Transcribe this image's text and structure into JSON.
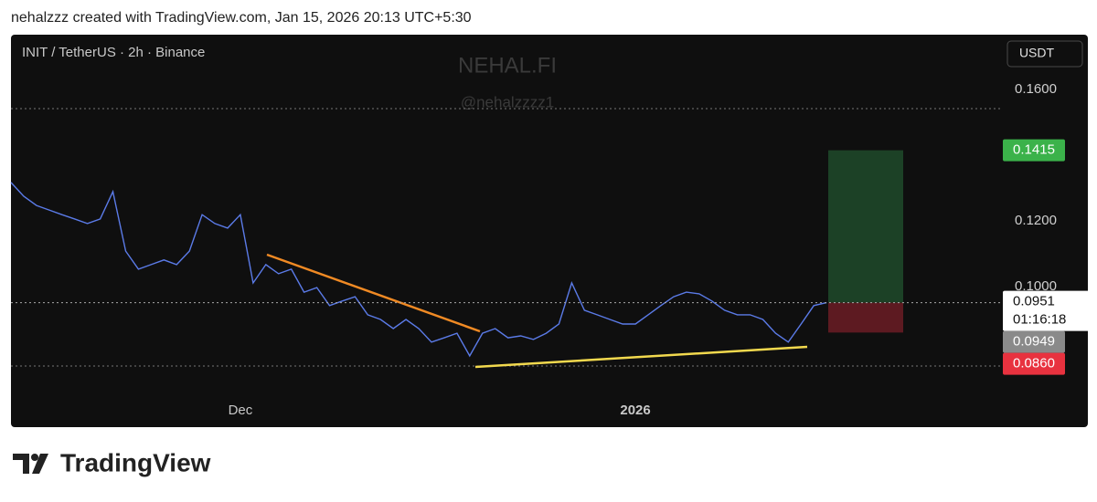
{
  "header": {
    "text": "nehalzzz created with TradingView.com, Jan 15, 2026 20:13 UTC+5:30"
  },
  "watermark": {
    "title": "NEHAL.FI",
    "handle": "@nehalzzzz1"
  },
  "currency": "USDT",
  "footer": {
    "brand": "TradingView"
  },
  "chart_data": {
    "type": "line",
    "title": "INIT / TetherUS · 2h · Binance",
    "categories": [
      null,
      null,
      null,
      null,
      null,
      null,
      null,
      null,
      null,
      null,
      null,
      null,
      null,
      null,
      null,
      null,
      null,
      null,
      "Dec",
      null,
      null,
      null,
      null,
      null,
      null,
      null,
      null,
      null,
      null,
      null,
      null,
      null,
      null,
      null,
      null,
      null,
      null,
      null,
      null,
      null,
      null,
      null,
      null,
      null,
      null,
      null,
      null,
      null,
      null,
      "2026",
      null,
      null,
      null,
      null,
      null,
      null,
      null,
      null,
      null,
      null,
      null,
      null,
      null,
      null,
      null
    ],
    "values": [
      0.1317,
      0.1275,
      0.1247,
      0.1233,
      0.1219,
      0.1206,
      0.1192,
      0.1206,
      0.1289,
      0.1108,
      0.1053,
      0.1067,
      0.1081,
      0.1067,
      0.1108,
      0.1219,
      0.1192,
      0.1178,
      0.1219,
      0.1011,
      0.1067,
      0.1039,
      0.1053,
      0.0983,
      0.0997,
      0.0942,
      0.0956,
      0.0969,
      0.0914,
      0.09,
      0.0872,
      0.09,
      0.0872,
      0.0831,
      0.0844,
      0.0858,
      0.0789,
      0.0858,
      0.0872,
      0.0844,
      0.085,
      0.0839,
      0.0858,
      0.0886,
      0.1011,
      0.0928,
      0.0914,
      0.09,
      0.0886,
      0.0886,
      0.0914,
      0.0942,
      0.0969,
      0.0983,
      0.0978,
      0.0956,
      0.0928,
      0.0914,
      0.0914,
      0.09,
      0.0858,
      0.0831,
      0.0886,
      0.0942,
      0.0951
    ],
    "color": "#5b7be8",
    "ylim": [
      0.0672,
      0.1767
    ],
    "yticks": [
      {
        "value": 0.1,
        "label": "0.1000"
      },
      {
        "value": 0.12,
        "label": "0.1200"
      },
      {
        "value": 0.16,
        "label": "0.1600"
      }
    ],
    "grid": false,
    "last_price": 0.0951,
    "countdown": "01:16:18",
    "bid_price": 0.0949,
    "position": {
      "target": 0.1415,
      "stop": {
        "value": 0.086,
        "label": "0.0860"
      }
    }
  }
}
